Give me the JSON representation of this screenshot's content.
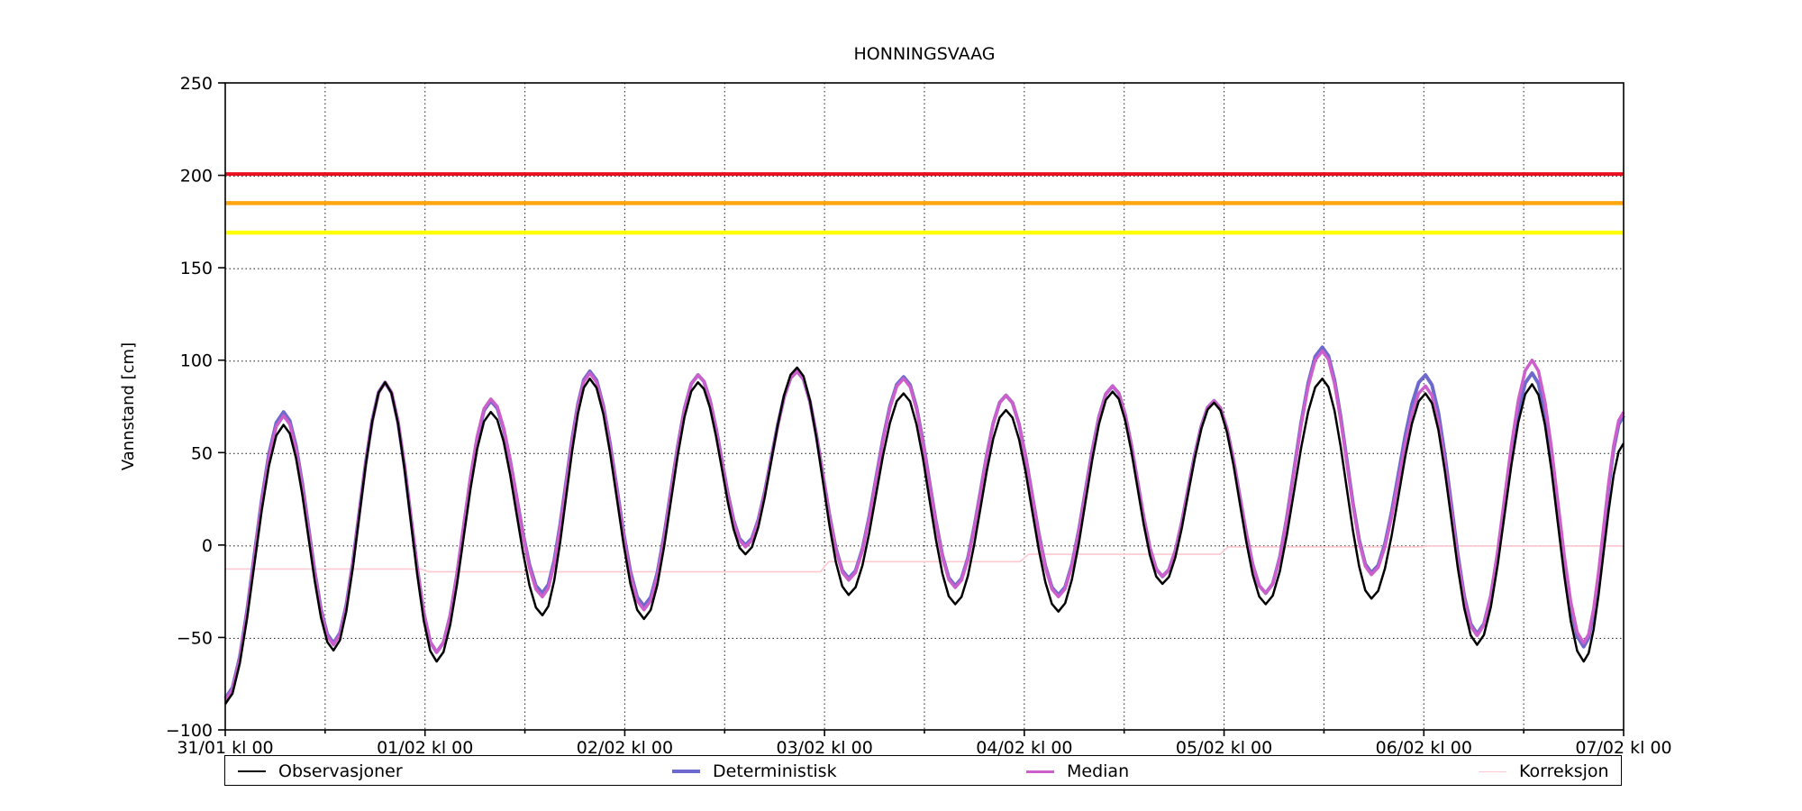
{
  "title": "HONNINGSVAAG",
  "ylabel": "Vannstand [cm]",
  "legend": {
    "items": [
      {
        "label": "Observasjoner",
        "color": "#000000",
        "thickness": 2.5
      },
      {
        "label": "Deterministisk",
        "color": "#6e6acd",
        "thickness": 4
      },
      {
        "label": "Median",
        "color": "#cc5fcc",
        "thickness": 3.5
      },
      {
        "label": "Korreksjon",
        "color": "#ffc8d0",
        "thickness": 1.6
      }
    ]
  },
  "chart_data": {
    "type": "line",
    "title": "HONNINGSVAAG",
    "xlabel": "",
    "ylabel": "Vannstand [cm]",
    "x_unit": "hours since 31/01 kl 00",
    "xlim": [
      0,
      168
    ],
    "ylim": [
      -100,
      250
    ],
    "grid": "dotted black, horizontal every 50 cm, vertical every 12 h",
    "legend_position": "bottom, outside axes, 4 columns",
    "x_ticks": [
      {
        "t": 0,
        "label": "31/01 kl 00"
      },
      {
        "t": 24,
        "label": "01/02 kl 00"
      },
      {
        "t": 48,
        "label": "02/02 kl 00"
      },
      {
        "t": 72,
        "label": "03/02 kl 00"
      },
      {
        "t": 96,
        "label": "04/02 kl 00"
      },
      {
        "t": 120,
        "label": "05/02 kl 00"
      },
      {
        "t": 144,
        "label": "06/02 kl 00"
      },
      {
        "t": 168,
        "label": "07/02 kl 00"
      }
    ],
    "x_minor_tick_step_hours": 12,
    "y_ticks": [
      {
        "v": 250,
        "label": "250"
      },
      {
        "v": 200,
        "label": "200"
      },
      {
        "v": 150,
        "label": "150"
      },
      {
        "v": 100,
        "label": "100"
      },
      {
        "v": 50,
        "label": "50"
      },
      {
        "v": 0,
        "label": "0"
      },
      {
        "v": -50,
        "label": "−50"
      },
      {
        "v": -100,
        "label": "−100"
      }
    ],
    "threshold_lines": [
      {
        "name": "red-alert-level",
        "value": 200,
        "color": "#e8101e",
        "width": 4
      },
      {
        "name": "orange-alert-level",
        "value": 185,
        "color": "#ffa510",
        "width": 4.5
      },
      {
        "name": "yellow-alert-level",
        "value": 169,
        "color": "#ffff00",
        "width": 4.5
      }
    ],
    "series": [
      {
        "name": "Korreksjon",
        "color": "#ffc8d0",
        "width": 1.6,
        "interpolation": "linear",
        "points": [
          [
            0,
            -13
          ],
          [
            23.5,
            -13
          ],
          [
            24.5,
            -14.5
          ],
          [
            71.5,
            -14.5
          ],
          [
            72.5,
            -9
          ],
          [
            95.5,
            -9
          ],
          [
            96.5,
            -5
          ],
          [
            119.5,
            -5
          ],
          [
            120.5,
            -1
          ],
          [
            143.5,
            -1
          ],
          [
            144.5,
            -0.5
          ],
          [
            168,
            -0.5
          ]
        ]
      },
      {
        "name": "Deterministisk",
        "color": "#6e6acd",
        "width": 4,
        "interpolation": "tidal",
        "points": [
          [
            0,
            -83
          ],
          [
            7,
            72
          ],
          [
            13,
            -53
          ],
          [
            19.2,
            88
          ],
          [
            25.4,
            -58
          ],
          [
            31.9,
            78
          ],
          [
            38.1,
            -26
          ],
          [
            43.8,
            94
          ],
          [
            50.3,
            -33
          ],
          [
            56.8,
            92
          ],
          [
            62.5,
            0
          ],
          [
            68.7,
            94
          ],
          [
            74.9,
            -18
          ],
          [
            81.5,
            91
          ],
          [
            87.7,
            -22
          ],
          [
            93.8,
            81
          ],
          [
            100.1,
            -27
          ],
          [
            106.6,
            86
          ],
          [
            112.6,
            -17
          ],
          [
            118.8,
            78
          ],
          [
            125,
            -26
          ],
          [
            131.8,
            107
          ],
          [
            137.7,
            -15
          ],
          [
            144.2,
            92
          ],
          [
            150.4,
            -48
          ],
          [
            157,
            93
          ],
          [
            163.2,
            -55
          ],
          [
            168,
            70
          ]
        ]
      },
      {
        "name": "Median",
        "color": "#cc5fcc",
        "width": 3.5,
        "interpolation": "tidal",
        "points": [
          [
            0,
            -84
          ],
          [
            7,
            70
          ],
          [
            13,
            -54
          ],
          [
            19.2,
            88
          ],
          [
            25.4,
            -58
          ],
          [
            31.9,
            79
          ],
          [
            38.1,
            -28
          ],
          [
            43.8,
            93
          ],
          [
            50.3,
            -35
          ],
          [
            56.8,
            92
          ],
          [
            62.5,
            -1
          ],
          [
            68.7,
            94
          ],
          [
            74.9,
            -19
          ],
          [
            81.5,
            90
          ],
          [
            87.7,
            -23
          ],
          [
            93.8,
            81
          ],
          [
            100.1,
            -28
          ],
          [
            106.6,
            86
          ],
          [
            112.6,
            -17
          ],
          [
            118.8,
            78
          ],
          [
            125,
            -26
          ],
          [
            131.8,
            105
          ],
          [
            137.7,
            -16
          ],
          [
            144.2,
            86
          ],
          [
            150.4,
            -49
          ],
          [
            157,
            100
          ],
          [
            163.2,
            -53
          ],
          [
            168,
            72
          ]
        ]
      },
      {
        "name": "Observasjoner",
        "color": "#000000",
        "width": 2.5,
        "interpolation": "tidal",
        "points": [
          [
            0,
            -86
          ],
          [
            7,
            65
          ],
          [
            13,
            -57
          ],
          [
            19.2,
            88
          ],
          [
            25.4,
            -63
          ],
          [
            31.9,
            72
          ],
          [
            38.1,
            -38
          ],
          [
            43.8,
            90
          ],
          [
            50.3,
            -40
          ],
          [
            56.8,
            88
          ],
          [
            62.5,
            -5
          ],
          [
            68.7,
            96
          ],
          [
            74.9,
            -27
          ],
          [
            81.5,
            82
          ],
          [
            87.7,
            -32
          ],
          [
            93.8,
            73
          ],
          [
            100.1,
            -36
          ],
          [
            106.6,
            83
          ],
          [
            112.6,
            -21
          ],
          [
            118.8,
            77
          ],
          [
            125,
            -32
          ],
          [
            131.8,
            90
          ],
          [
            137.7,
            -29
          ],
          [
            144.2,
            82
          ],
          [
            150.4,
            -54
          ],
          [
            157,
            87
          ],
          [
            163.2,
            -63
          ],
          [
            168,
            55
          ]
        ]
      }
    ]
  }
}
